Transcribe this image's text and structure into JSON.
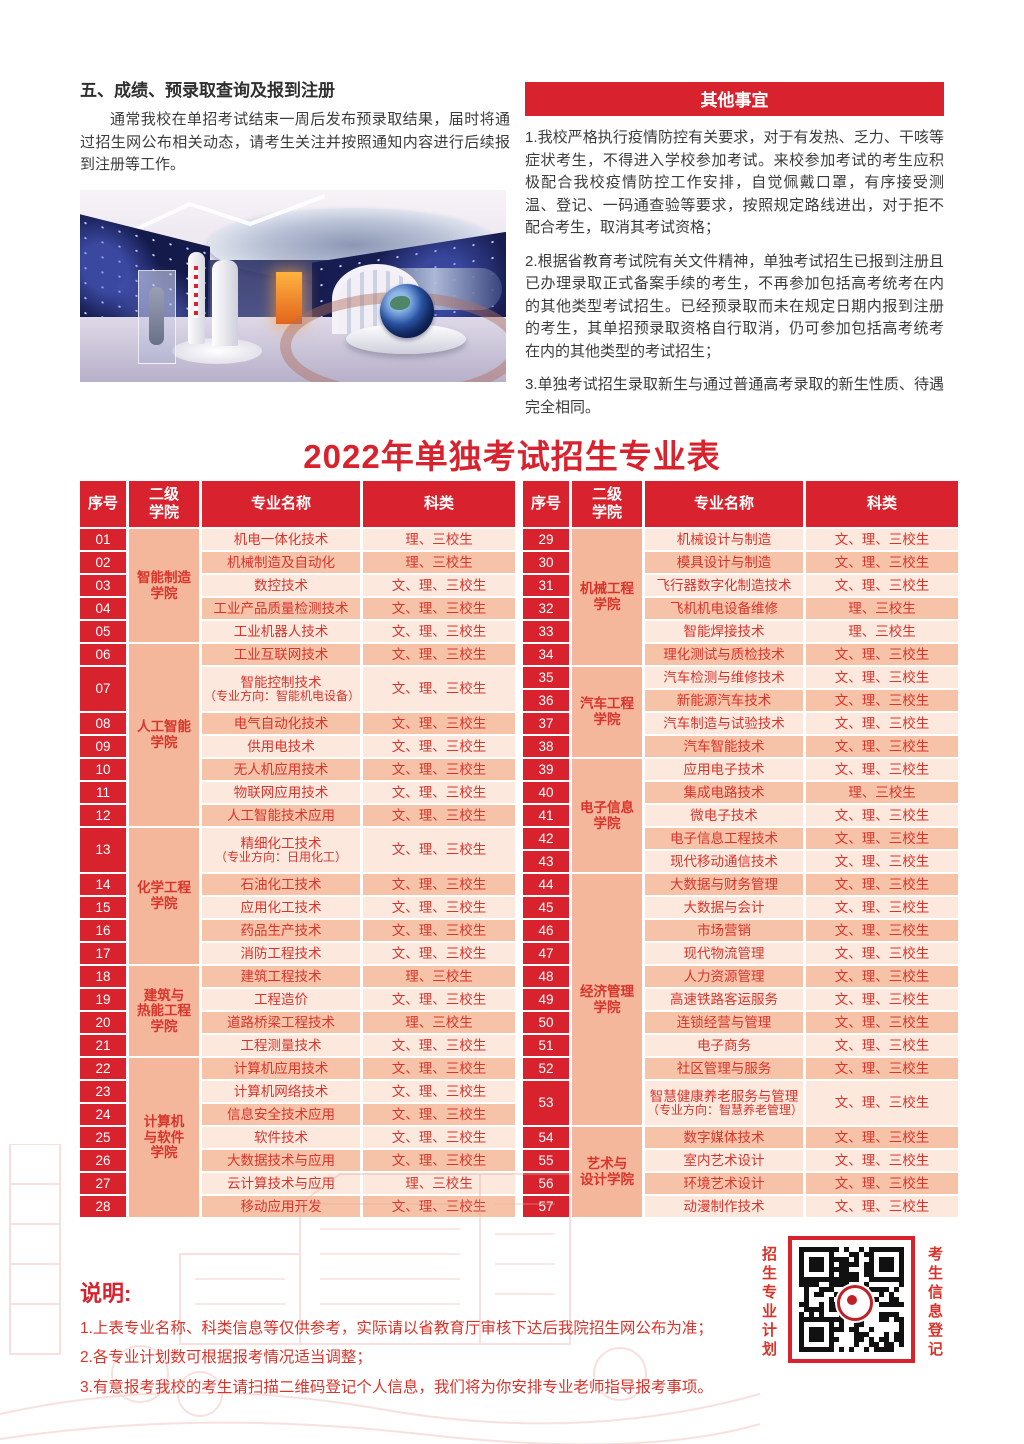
{
  "accent": {
    "red": "#d8232e",
    "table_text_red": "#d9342b",
    "row_light": "#fce8dd",
    "row_dark": "#f6c3a9",
    "college_cell": "#f4b79c"
  },
  "section_results": {
    "heading": "五、成绩、预录取查询及报到注册",
    "body": "通常我校在单招考试结束一周后发布预录取结果，届时将通过招生网公布相关动态，请考生关注并按照通知内容进行后续报到注册等工作。"
  },
  "other_matters": {
    "title": "其他事宜",
    "paragraphs": [
      "1.我校严格执行疫情防控有关要求，对于有发热、乏力、干咳等症状考生，不得进入学校参加考试。来校参加考试的考生应积极配合我校疫情防控工作安排，自觉佩戴口罩，有序接受测温、登记、一码通查验等要求，按照规定路线进出，对于拒不配合考生，取消其考试资格；",
      "2.根据省教育考试院有关文件精神，单独考试招生已报到注册且已办理录取正式备案手续的考生，不再参加包括高考统考在内的其他类型考试招生。已经预录取而未在规定日期内报到注册的考生，其单招预录取资格自行取消，仍可参加包括高考统考在内的其他类型的考试招生；",
      "3.单独考试招生录取新生与通过普通高考录取的新生性质、待遇完全相同。"
    ]
  },
  "table": {
    "title": "2022年单独考试招生专业表",
    "headers": [
      "序号",
      "二级\n学院",
      "专业名称",
      "科类"
    ],
    "halves": [
      {
        "groups": [
          {
            "college": "智能制造\n学院",
            "rows": [
              {
                "no": "01",
                "major": "机电一体化技术",
                "cat": "理、三校生"
              },
              {
                "no": "02",
                "major": "机械制造及自动化",
                "cat": "理、三校生"
              },
              {
                "no": "03",
                "major": "数控技术",
                "cat": "文、理、三校生"
              },
              {
                "no": "04",
                "major": "工业产品质量检测技术",
                "cat": "文、理、三校生"
              },
              {
                "no": "05",
                "major": "工业机器人技术",
                "cat": "文、理、三校生"
              }
            ]
          },
          {
            "college": "人工智能\n学院",
            "rows": [
              {
                "no": "06",
                "major": "工业互联网技术",
                "cat": "文、理、三校生"
              },
              {
                "no": "07",
                "major": "智能控制技术",
                "sub": "（专业方向：智能机电设备）",
                "cat": "文、理、三校生"
              },
              {
                "no": "08",
                "major": "电气自动化技术",
                "cat": "文、理、三校生"
              },
              {
                "no": "09",
                "major": "供用电技术",
                "cat": "文、理、三校生"
              },
              {
                "no": "10",
                "major": "无人机应用技术",
                "cat": "文、理、三校生"
              },
              {
                "no": "11",
                "major": "物联网应用技术",
                "cat": "文、理、三校生"
              },
              {
                "no": "12",
                "major": "人工智能技术应用",
                "cat": "文、理、三校生"
              }
            ]
          },
          {
            "college": "化学工程\n学院",
            "rows": [
              {
                "no": "13",
                "major": "精细化工技术",
                "sub": "（专业方向：日用化工）",
                "cat": "文、理、三校生"
              },
              {
                "no": "14",
                "major": "石油化工技术",
                "cat": "文、理、三校生"
              },
              {
                "no": "15",
                "major": "应用化工技术",
                "cat": "文、理、三校生"
              },
              {
                "no": "16",
                "major": "药品生产技术",
                "cat": "文、理、三校生"
              },
              {
                "no": "17",
                "major": "消防工程技术",
                "cat": "文、理、三校生"
              }
            ]
          },
          {
            "college": "建筑与\n热能工程\n学院",
            "rows": [
              {
                "no": "18",
                "major": "建筑工程技术",
                "cat": "理、三校生"
              },
              {
                "no": "19",
                "major": "工程造价",
                "cat": "文、理、三校生"
              },
              {
                "no": "20",
                "major": "道路桥梁工程技术",
                "cat": "理、三校生"
              },
              {
                "no": "21",
                "major": "工程测量技术",
                "cat": "文、理、三校生"
              }
            ]
          },
          {
            "college": "计算机\n与软件\n学院",
            "rows": [
              {
                "no": "22",
                "major": "计算机应用技术",
                "cat": "文、理、三校生"
              },
              {
                "no": "23",
                "major": "计算机网络技术",
                "cat": "文、理、三校生"
              },
              {
                "no": "24",
                "major": "信息安全技术应用",
                "cat": "文、理、三校生"
              },
              {
                "no": "25",
                "major": "软件技术",
                "cat": "文、理、三校生"
              },
              {
                "no": "26",
                "major": "大数据技术与应用",
                "cat": "文、理、三校生"
              },
              {
                "no": "27",
                "major": "云计算技术与应用",
                "cat": "理、三校生"
              },
              {
                "no": "28",
                "major": "移动应用开发",
                "cat": "文、理、三校生"
              }
            ]
          }
        ]
      },
      {
        "groups": [
          {
            "college": "机械工程\n学院",
            "rows": [
              {
                "no": "29",
                "major": "机械设计与制造",
                "cat": "文、理、三校生"
              },
              {
                "no": "30",
                "major": "模具设计与制造",
                "cat": "文、理、三校生"
              },
              {
                "no": "31",
                "major": "飞行器数字化制造技术",
                "cat": "文、理、三校生"
              },
              {
                "no": "32",
                "major": "飞机机电设备维修",
                "cat": "理、三校生"
              },
              {
                "no": "33",
                "major": "智能焊接技术",
                "cat": "理、三校生"
              },
              {
                "no": "34",
                "major": "理化测试与质检技术",
                "cat": "文、理、三校生"
              }
            ]
          },
          {
            "college": "汽车工程\n学院",
            "rows": [
              {
                "no": "35",
                "major": "汽车检测与维修技术",
                "cat": "文、理、三校生"
              },
              {
                "no": "36",
                "major": "新能源汽车技术",
                "cat": "文、理、三校生"
              },
              {
                "no": "37",
                "major": "汽车制造与试验技术",
                "cat": "文、理、三校生"
              },
              {
                "no": "38",
                "major": "汽车智能技术",
                "cat": "文、理、三校生"
              }
            ]
          },
          {
            "college": "电子信息\n学院",
            "rows": [
              {
                "no": "39",
                "major": "应用电子技术",
                "cat": "文、理、三校生"
              },
              {
                "no": "40",
                "major": "集成电路技术",
                "cat": "理、三校生"
              },
              {
                "no": "41",
                "major": "微电子技术",
                "cat": "文、理、三校生"
              },
              {
                "no": "42",
                "major": "电子信息工程技术",
                "cat": "文、理、三校生"
              },
              {
                "no": "43",
                "major": "现代移动通信技术",
                "cat": "文、理、三校生"
              }
            ]
          },
          {
            "college": "经济管理\n学院",
            "rows": [
              {
                "no": "44",
                "major": "大数据与财务管理",
                "cat": "文、理、三校生"
              },
              {
                "no": "45",
                "major": "大数据与会计",
                "cat": "文、理、三校生"
              },
              {
                "no": "46",
                "major": "市场营销",
                "cat": "文、理、三校生"
              },
              {
                "no": "47",
                "major": "现代物流管理",
                "cat": "文、理、三校生"
              },
              {
                "no": "48",
                "major": "人力资源管理",
                "cat": "文、理、三校生"
              },
              {
                "no": "49",
                "major": "高速铁路客运服务",
                "cat": "文、理、三校生"
              },
              {
                "no": "50",
                "major": "连锁经营与管理",
                "cat": "文、理、三校生"
              },
              {
                "no": "51",
                "major": "电子商务",
                "cat": "文、理、三校生"
              },
              {
                "no": "52",
                "major": "社区管理与服务",
                "cat": "文、理、三校生"
              },
              {
                "no": "53",
                "major": "智慧健康养老服务与管理",
                "sub": "（专业方向：智慧养老管理）",
                "cat": "文、理、三校生"
              }
            ]
          },
          {
            "college": "艺术与\n设计学院",
            "rows": [
              {
                "no": "54",
                "major": "数字媒体技术",
                "cat": "文、理、三校生"
              },
              {
                "no": "55",
                "major": "室内艺术设计",
                "cat": "文、理、三校生"
              },
              {
                "no": "56",
                "major": "环境艺术设计",
                "cat": "文、理、三校生"
              },
              {
                "no": "57",
                "major": "动漫制作技术",
                "cat": "文、理、三校生"
              }
            ]
          }
        ]
      }
    ]
  },
  "notes": {
    "title": "说明:",
    "items": [
      "1.上表专业名称、科类信息等仅供参考，实际请以省教育厅审核下达后我院招生网公布为准；",
      "2.各专业计划数可根据报考情况适当调整；",
      "3.有意报考我校的考生请扫描二维码登记个人信息，我们将为你安排专业老师指导报考事项。"
    ]
  },
  "qr": {
    "left_label": "招生专业计划",
    "right_label": "考生信息登记"
  }
}
